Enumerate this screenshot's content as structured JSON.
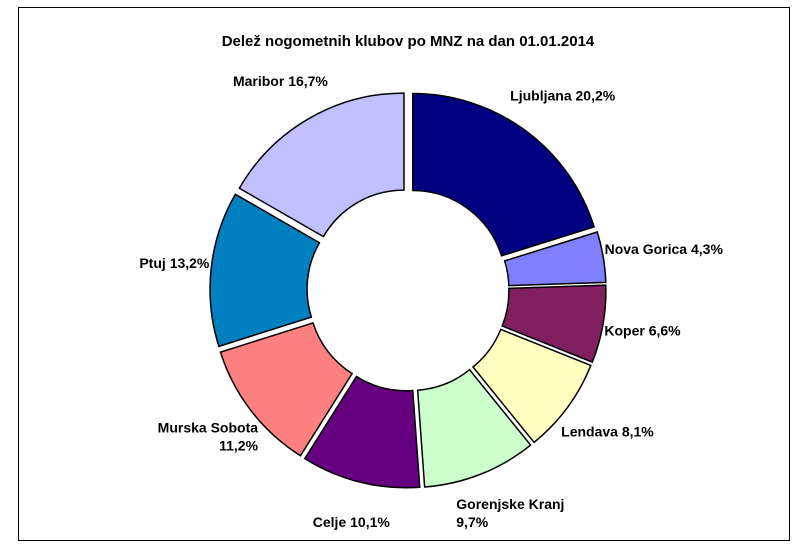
{
  "chart_data": {
    "type": "donut",
    "title": "Delež nogometnih klubov po MNZ na dan 01.01.2014",
    "categories": [
      "Ljubljana",
      "Nova Gorica",
      "Koper",
      "Lendava",
      "Gorenjske Kranj",
      "Celje",
      "Murska Sobota",
      "Ptuj",
      "Maribor"
    ],
    "values": [
      20.2,
      4.3,
      6.6,
      8.1,
      9.7,
      10.1,
      11.2,
      13.2,
      16.7
    ],
    "value_labels": [
      "20,2%",
      "4,3%",
      "6,6%",
      "8,1%",
      "9,7%",
      "10,1%",
      "11,2%",
      "13,2%",
      "16,7%"
    ],
    "colors": [
      "#000080",
      "#8080ff",
      "#802060",
      "#ffffc0",
      "#ccffcc",
      "#660080",
      "#ff8080",
      "#0080c0",
      "#c0c0ff"
    ]
  }
}
